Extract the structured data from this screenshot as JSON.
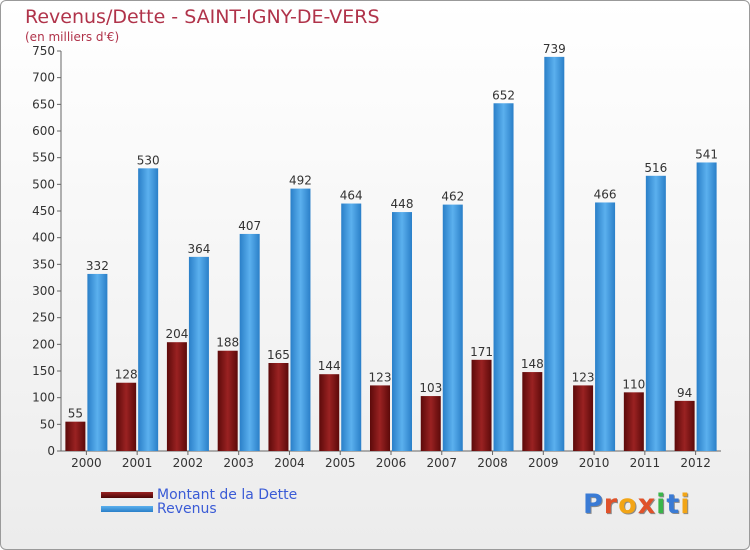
{
  "header": {
    "title": "Revenus/Dette - SAINT-IGNY-DE-VERS",
    "subtitle": "(en milliers d'€)"
  },
  "legend": {
    "debt_label": "Montant de la Dette",
    "revenue_label": "Revenus"
  },
  "logo": {
    "text": "Proxiti"
  },
  "colors": {
    "debt": "#7a1212",
    "revenue": "#3d9be3",
    "axis_text": "#333333",
    "title": "#b0334a"
  },
  "chart_data": {
    "type": "bar",
    "title": "Revenus/Dette - SAINT-IGNY-DE-VERS",
    "ylabel": "(en milliers d'€)",
    "xlabel": "",
    "ylim": [
      0,
      750
    ],
    "yticks": [
      0,
      50,
      100,
      150,
      200,
      250,
      300,
      350,
      400,
      450,
      500,
      550,
      600,
      650,
      700,
      750
    ],
    "grid": false,
    "legend_position": "bottom-left",
    "categories": [
      "2000",
      "2001",
      "2002",
      "2003",
      "2004",
      "2005",
      "2006",
      "2007",
      "2008",
      "2009",
      "2010",
      "2011",
      "2012"
    ],
    "series": [
      {
        "name": "Montant de la Dette",
        "values": [
          55,
          128,
          204,
          188,
          165,
          144,
          123,
          103,
          171,
          148,
          123,
          110,
          94
        ]
      },
      {
        "name": "Revenus",
        "values": [
          332,
          530,
          364,
          407,
          492,
          464,
          448,
          462,
          652,
          739,
          466,
          516,
          541
        ]
      }
    ]
  }
}
